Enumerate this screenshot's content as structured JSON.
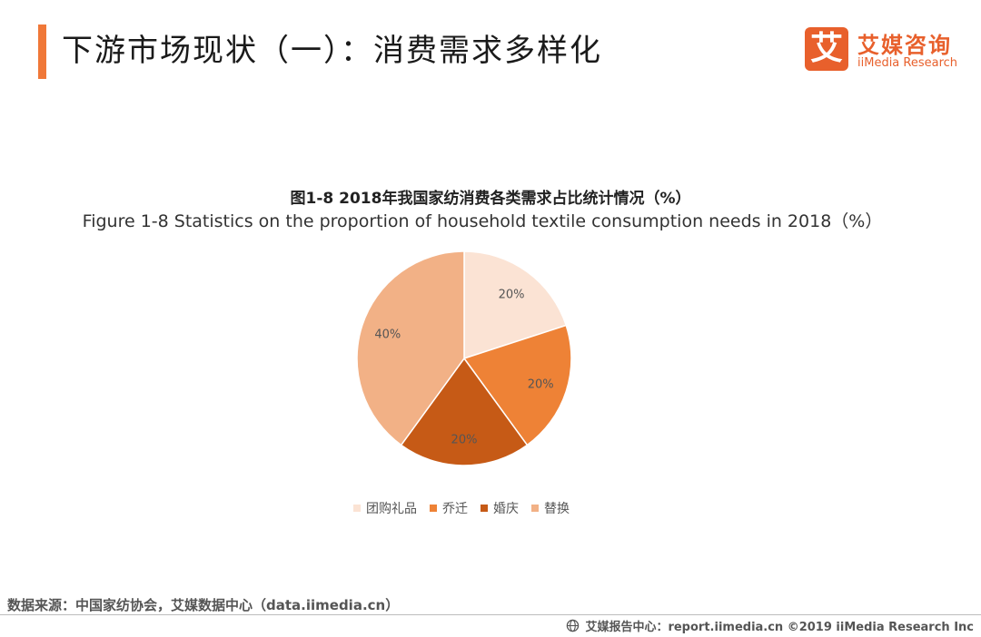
{
  "header": {
    "title": "下游市场现状（一）：消费需求多样化",
    "logo_mark": "艾",
    "logo_cn": "艾媒咨询",
    "logo_en": "iiMedia Research",
    "accent_color": "#f07838"
  },
  "chart_data": {
    "type": "pie",
    "title": "图1-8 2018年我国家纺消费各类需求占比统计情况（%）",
    "subtitle": "Figure 1-8 Statistics on the proportion of household textile consumption needs in 2018（%）",
    "categories": [
      "团购礼品",
      "乔迁",
      "婚庆",
      "替换"
    ],
    "values": [
      20,
      20,
      20,
      40
    ],
    "labels": [
      "20%",
      "20%",
      "20%",
      "40%"
    ],
    "colors": [
      "#fbe3d4",
      "#ee8236",
      "#c65a16",
      "#f2b186"
    ],
    "legend_position": "bottom"
  },
  "footer": {
    "source": "数据来源：中国家纺协会，艾媒数据中心（data.iimedia.cn）",
    "copyright": "艾媒报告中心：report.iimedia.cn ©2019 iiMedia Research Inc"
  }
}
